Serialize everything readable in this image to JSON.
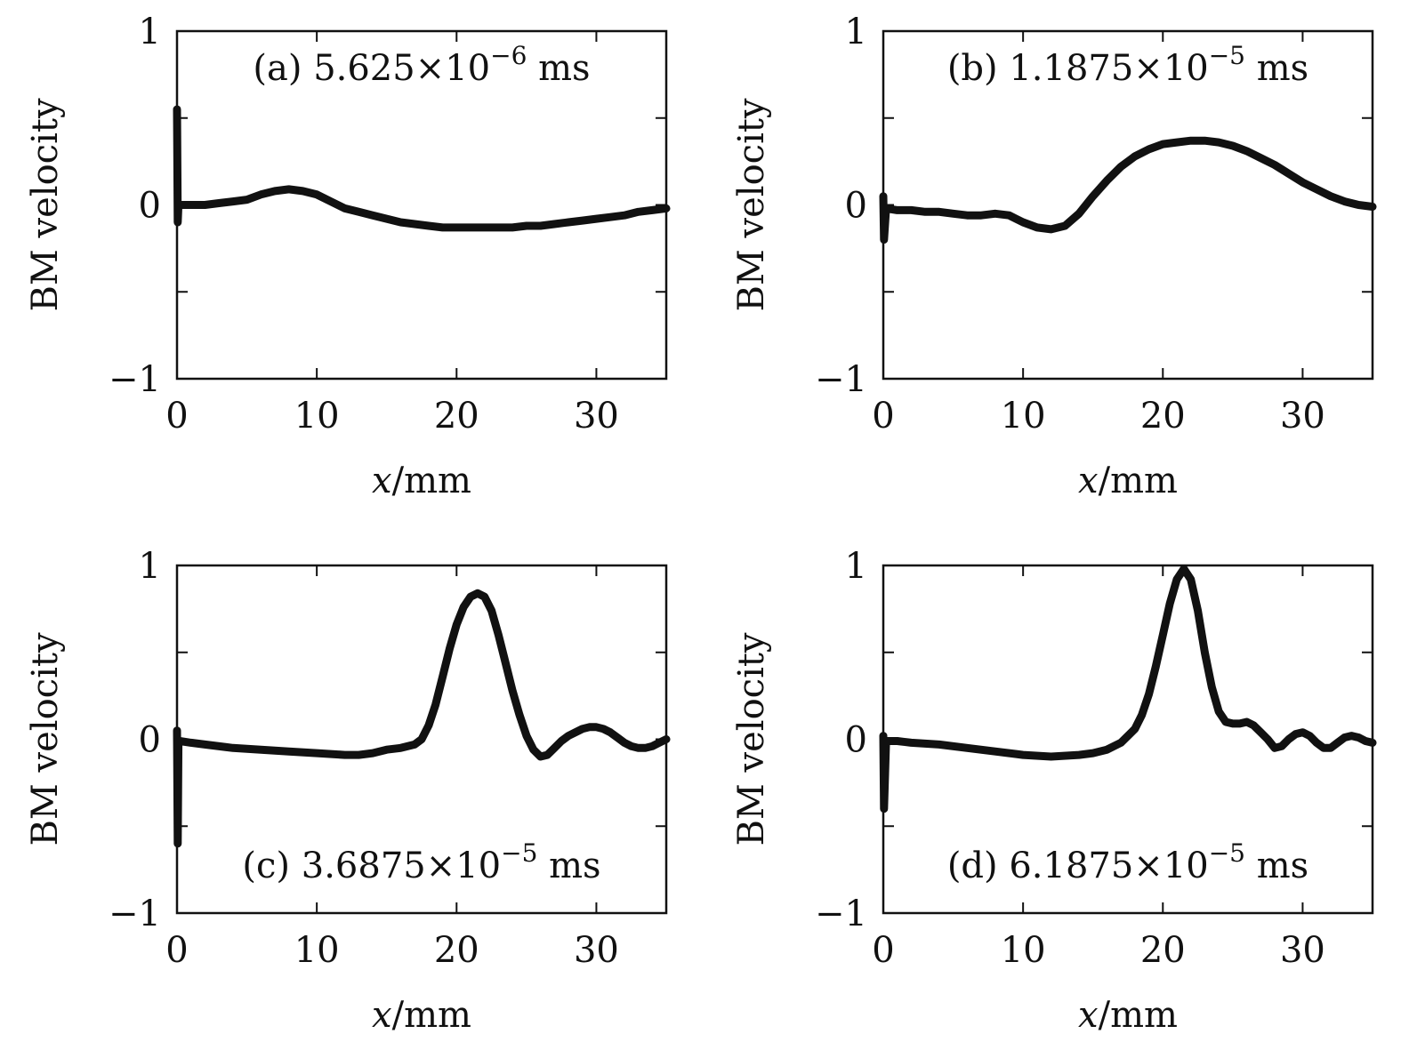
{
  "figure": {
    "colors": {
      "ink": "#111111",
      "background": "#ffffff"
    }
  },
  "chart_data": [
    {
      "type": "line",
      "panel": "a",
      "title": "(a) 5.625×10",
      "title_exp": "−6",
      "title_unit": " ms",
      "xlabel_var": "x",
      "xlabel_unit": "/mm",
      "ylabel": "BM velocity",
      "xlim": [
        0,
        35
      ],
      "ylim": [
        -1,
        1
      ],
      "xticks": [
        0,
        10,
        20,
        30
      ],
      "xtick_labels": [
        "0",
        "10",
        "20",
        "30"
      ],
      "yticks": [
        -1,
        -0.5,
        0,
        0.5,
        1
      ],
      "ytick_labels": [
        "−1",
        "",
        "0",
        "",
        "1"
      ],
      "title_position": "top-center",
      "series": [
        {
          "name": "BM velocity",
          "x": [
            0,
            0.05,
            0.1,
            0.2,
            1,
            2,
            3,
            4,
            5,
            6,
            7,
            8,
            9,
            10,
            11,
            12,
            13,
            14,
            15,
            16,
            17,
            18,
            19,
            20,
            21,
            22,
            23,
            24,
            25,
            26,
            27,
            28,
            29,
            30,
            31,
            32,
            33,
            34,
            35
          ],
          "y": [
            0.55,
            -0.1,
            0.0,
            0.0,
            0.0,
            0.0,
            0.01,
            0.02,
            0.03,
            0.06,
            0.08,
            0.09,
            0.08,
            0.06,
            0.02,
            -0.02,
            -0.04,
            -0.06,
            -0.08,
            -0.1,
            -0.11,
            -0.12,
            -0.13,
            -0.13,
            -0.13,
            -0.13,
            -0.13,
            -0.13,
            -0.12,
            -0.12,
            -0.11,
            -0.1,
            -0.09,
            -0.08,
            -0.07,
            -0.06,
            -0.04,
            -0.03,
            -0.02
          ]
        }
      ]
    },
    {
      "type": "line",
      "panel": "b",
      "title": "(b) 1.1875×10",
      "title_exp": "−5",
      "title_unit": " ms",
      "xlabel_var": "x",
      "xlabel_unit": "/mm",
      "ylabel": "BM velocity",
      "xlim": [
        0,
        35
      ],
      "ylim": [
        -1,
        1
      ],
      "xticks": [
        0,
        10,
        20,
        30
      ],
      "xtick_labels": [
        "0",
        "10",
        "20",
        "30"
      ],
      "yticks": [
        -1,
        -0.5,
        0,
        0.5,
        1
      ],
      "ytick_labels": [
        "−1",
        "",
        "0",
        "",
        "1"
      ],
      "title_position": "top-center",
      "series": [
        {
          "name": "BM velocity",
          "x": [
            0,
            0.05,
            0.2,
            1,
            2,
            3,
            4,
            5,
            6,
            7,
            8,
            9,
            10,
            11,
            12,
            13,
            14,
            15,
            16,
            17,
            18,
            19,
            20,
            21,
            22,
            23,
            24,
            25,
            26,
            27,
            28,
            29,
            30,
            31,
            32,
            33,
            34,
            35
          ],
          "y": [
            0.05,
            -0.2,
            -0.02,
            -0.03,
            -0.03,
            -0.04,
            -0.04,
            -0.05,
            -0.06,
            -0.06,
            -0.05,
            -0.06,
            -0.1,
            -0.13,
            -0.14,
            -0.12,
            -0.05,
            0.05,
            0.14,
            0.22,
            0.28,
            0.32,
            0.35,
            0.36,
            0.37,
            0.37,
            0.36,
            0.34,
            0.31,
            0.27,
            0.23,
            0.18,
            0.13,
            0.09,
            0.05,
            0.02,
            0.0,
            -0.01
          ]
        }
      ]
    },
    {
      "type": "line",
      "panel": "c",
      "title": "(c) 3.6875×10",
      "title_exp": "−5",
      "title_unit": " ms",
      "xlabel_var": "x",
      "xlabel_unit": "/mm",
      "ylabel": "BM velocity",
      "xlim": [
        0,
        35
      ],
      "ylim": [
        -1,
        1
      ],
      "xticks": [
        0,
        10,
        20,
        30
      ],
      "xtick_labels": [
        "0",
        "10",
        "20",
        "30"
      ],
      "yticks": [
        -1,
        -0.5,
        0,
        0.5,
        1
      ],
      "ytick_labels": [
        "−1",
        "",
        "0",
        "",
        "1"
      ],
      "title_position": "bottom-center",
      "series": [
        {
          "name": "BM velocity",
          "x": [
            0,
            0.05,
            0.1,
            0.2,
            1,
            2,
            4,
            6,
            8,
            10,
            12,
            13,
            14,
            15,
            16,
            17,
            17.5,
            18,
            18.5,
            19,
            19.5,
            20,
            20.5,
            21,
            21.5,
            22,
            22.5,
            23,
            23.5,
            24,
            24.5,
            25,
            25.5,
            26,
            26.5,
            27,
            27.5,
            28,
            28.5,
            29,
            29.5,
            30,
            30.5,
            31,
            31.5,
            32,
            32.5,
            33,
            33.5,
            34,
            34.5,
            35
          ],
          "y": [
            0.05,
            -0.6,
            -0.01,
            -0.01,
            -0.02,
            -0.03,
            -0.05,
            -0.06,
            -0.07,
            -0.08,
            -0.09,
            -0.09,
            -0.08,
            -0.06,
            -0.05,
            -0.03,
            0.0,
            0.08,
            0.2,
            0.36,
            0.52,
            0.66,
            0.76,
            0.82,
            0.84,
            0.82,
            0.74,
            0.6,
            0.44,
            0.28,
            0.14,
            0.02,
            -0.06,
            -0.1,
            -0.09,
            -0.05,
            -0.01,
            0.02,
            0.04,
            0.06,
            0.07,
            0.07,
            0.06,
            0.04,
            0.01,
            -0.02,
            -0.04,
            -0.05,
            -0.05,
            -0.04,
            -0.02,
            0.0
          ]
        }
      ]
    },
    {
      "type": "line",
      "panel": "d",
      "title": "(d) 6.1875×10",
      "title_exp": "−5",
      "title_unit": " ms",
      "xlabel_var": "x",
      "xlabel_unit": "/mm",
      "ylabel": "BM velocity",
      "xlim": [
        0,
        35
      ],
      "ylim": [
        -1,
        1
      ],
      "xticks": [
        0,
        10,
        20,
        30
      ],
      "xtick_labels": [
        "0",
        "10",
        "20",
        "30"
      ],
      "yticks": [
        -1,
        -0.5,
        0,
        0.5,
        1
      ],
      "ytick_labels": [
        "−1",
        "",
        "0",
        "",
        "1"
      ],
      "title_position": "bottom-center",
      "series": [
        {
          "name": "BM velocity",
          "x": [
            0,
            0.05,
            0.2,
            1,
            2,
            4,
            6,
            8,
            10,
            12,
            14,
            15,
            16,
            17,
            18,
            18.5,
            19,
            19.5,
            20,
            20.5,
            21,
            21.5,
            22,
            22.5,
            23,
            23.5,
            24,
            24.5,
            25,
            25.5,
            26,
            26.5,
            27,
            27.5,
            28,
            28.5,
            29,
            29.5,
            30,
            30.5,
            31,
            31.5,
            32,
            32.5,
            33,
            33.5,
            34,
            34.5,
            35
          ],
          "y": [
            0.02,
            -0.4,
            -0.01,
            -0.01,
            -0.02,
            -0.03,
            -0.05,
            -0.07,
            -0.09,
            -0.1,
            -0.09,
            -0.08,
            -0.06,
            -0.02,
            0.06,
            0.14,
            0.26,
            0.42,
            0.6,
            0.78,
            0.92,
            0.98,
            0.92,
            0.74,
            0.5,
            0.3,
            0.16,
            0.1,
            0.09,
            0.09,
            0.1,
            0.08,
            0.04,
            0.0,
            -0.05,
            -0.04,
            0.0,
            0.03,
            0.04,
            0.02,
            -0.02,
            -0.05,
            -0.05,
            -0.02,
            0.01,
            0.02,
            0.01,
            -0.01,
            -0.02
          ]
        }
      ]
    }
  ]
}
